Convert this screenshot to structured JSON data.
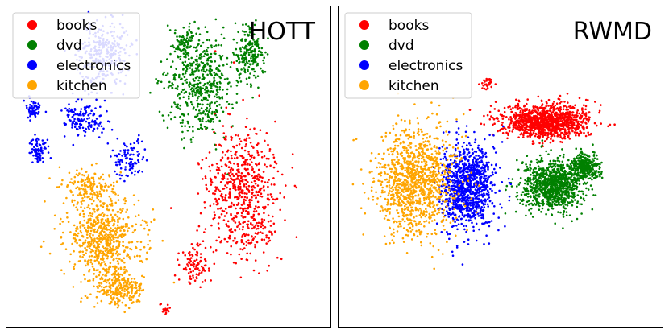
{
  "chart_data": [
    {
      "type": "scatter",
      "title": "HOTT",
      "legend": {
        "placement": "top-left",
        "entries": [
          "books",
          "dvd",
          "electronics",
          "kitchen"
        ]
      },
      "axes": "hidden",
      "series": [
        {
          "name": "books",
          "color": "#ff0000",
          "clusters": [
            {
              "center": [
                0.73,
                0.58
              ],
              "spread": [
                0.11,
                0.21
              ],
              "count": 650
            },
            {
              "center": [
                0.58,
                0.8
              ],
              "spread": [
                0.05,
                0.07
              ],
              "count": 90
            },
            {
              "center": [
                0.49,
                0.95
              ],
              "spread": [
                0.015,
                0.02
              ],
              "count": 20
            }
          ]
        },
        {
          "name": "dvd",
          "color": "#008000",
          "clusters": [
            {
              "center": [
                0.6,
                0.25
              ],
              "spread": [
                0.1,
                0.16
              ],
              "count": 500
            },
            {
              "center": [
                0.75,
                0.15
              ],
              "spread": [
                0.05,
                0.08
              ],
              "count": 200
            },
            {
              "center": [
                0.55,
                0.12
              ],
              "spread": [
                0.03,
                0.05
              ],
              "count": 80
            }
          ]
        },
        {
          "name": "electronics",
          "color": "#0000ff",
          "clusters": [
            {
              "center": [
                0.3,
                0.15
              ],
              "spread": [
                0.08,
                0.1
              ],
              "count": 300
            },
            {
              "center": [
                0.24,
                0.35
              ],
              "spread": [
                0.06,
                0.06
              ],
              "count": 150
            },
            {
              "center": [
                0.1,
                0.45
              ],
              "spread": [
                0.03,
                0.04
              ],
              "count": 80
            },
            {
              "center": [
                0.08,
                0.32
              ],
              "spread": [
                0.03,
                0.03
              ],
              "count": 60
            },
            {
              "center": [
                0.38,
                0.48
              ],
              "spread": [
                0.05,
                0.06
              ],
              "count": 100
            }
          ]
        },
        {
          "name": "kitchen",
          "color": "#ffa500",
          "clusters": [
            {
              "center": [
                0.3,
                0.72
              ],
              "spread": [
                0.12,
                0.13
              ],
              "count": 650
            },
            {
              "center": [
                0.35,
                0.88
              ],
              "spread": [
                0.08,
                0.05
              ],
              "count": 250
            },
            {
              "center": [
                0.25,
                0.56
              ],
              "spread": [
                0.07,
                0.05
              ],
              "count": 150
            }
          ]
        }
      ]
    },
    {
      "type": "scatter",
      "title": "RWMD",
      "legend": {
        "placement": "top-left",
        "entries": [
          "books",
          "dvd",
          "electronics",
          "kitchen"
        ]
      },
      "axes": "hidden",
      "series": [
        {
          "name": "books",
          "color": "#ff0000",
          "clusters": [
            {
              "center": [
                0.64,
                0.36
              ],
              "spread": [
                0.13,
                0.05
              ],
              "count": 1200
            },
            {
              "center": [
                0.46,
                0.24
              ],
              "spread": [
                0.02,
                0.02
              ],
              "count": 30
            }
          ]
        },
        {
          "name": "dvd",
          "color": "#008000",
          "clusters": [
            {
              "center": [
                0.66,
                0.56
              ],
              "spread": [
                0.09,
                0.08
              ],
              "count": 1000
            },
            {
              "center": [
                0.76,
                0.5
              ],
              "spread": [
                0.05,
                0.04
              ],
              "count": 300
            }
          ]
        },
        {
          "name": "electronics",
          "color": "#0000ff",
          "clusters": [
            {
              "center": [
                0.4,
                0.56
              ],
              "spread": [
                0.08,
                0.13
              ],
              "count": 1000
            }
          ]
        },
        {
          "name": "kitchen",
          "color": "#ffa500",
          "clusters": [
            {
              "center": [
                0.24,
                0.55
              ],
              "spread": [
                0.12,
                0.17
              ],
              "count": 1100
            }
          ]
        }
      ]
    }
  ]
}
